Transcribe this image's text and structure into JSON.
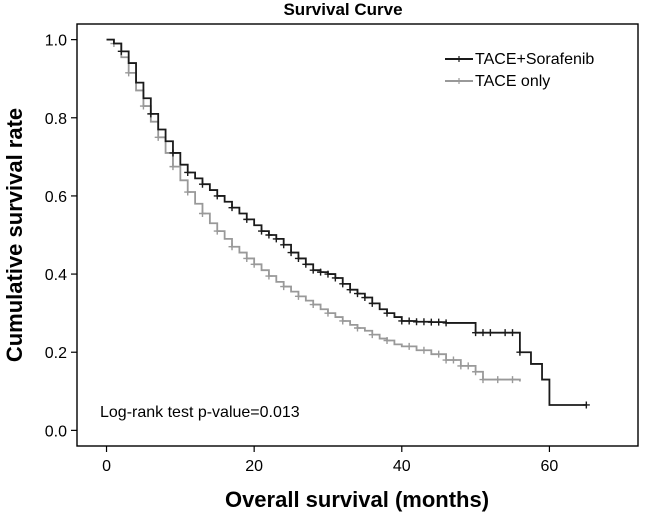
{
  "chart_data": {
    "type": "line",
    "title": "Survival Curve",
    "xlabel": "Overall survival (months)",
    "ylabel": "Cumulative survival rate",
    "xlim": [
      -4,
      72
    ],
    "ylim": [
      -0.04,
      1.04
    ],
    "x_ticks": [
      0,
      20,
      40,
      60
    ],
    "x_tick_labels": [
      "0",
      "20",
      "40",
      "60"
    ],
    "y_ticks": [
      0.0,
      0.2,
      0.4,
      0.6,
      0.8,
      1.0
    ],
    "y_tick_labels": [
      "0.0",
      "0.2",
      "0.4",
      "0.6",
      "0.8",
      "1.0"
    ],
    "legend_position": "top-right",
    "annotation": "Log-rank test p-value=0.013",
    "series": [
      {
        "name": "TACE+Sorafenib",
        "color": "#1a1a1a",
        "points": [
          [
            0,
            1.0
          ],
          [
            1,
            0.99
          ],
          [
            2,
            0.97
          ],
          [
            3,
            0.94
          ],
          [
            4,
            0.89
          ],
          [
            5,
            0.85
          ],
          [
            6,
            0.81
          ],
          [
            7,
            0.77
          ],
          [
            8,
            0.74
          ],
          [
            9,
            0.71
          ],
          [
            10,
            0.68
          ],
          [
            11,
            0.66
          ],
          [
            12,
            0.645
          ],
          [
            13,
            0.63
          ],
          [
            14,
            0.615
          ],
          [
            15,
            0.6
          ],
          [
            16,
            0.585
          ],
          [
            17,
            0.57
          ],
          [
            18,
            0.555
          ],
          [
            19,
            0.54
          ],
          [
            20,
            0.525
          ],
          [
            21,
            0.51
          ],
          [
            22,
            0.5
          ],
          [
            23,
            0.49
          ],
          [
            24,
            0.475
          ],
          [
            25,
            0.455
          ],
          [
            26,
            0.44
          ],
          [
            27,
            0.425
          ],
          [
            28,
            0.41
          ],
          [
            29,
            0.405
          ],
          [
            30,
            0.4
          ],
          [
            31,
            0.39
          ],
          [
            32,
            0.375
          ],
          [
            33,
            0.36
          ],
          [
            34,
            0.35
          ],
          [
            35,
            0.34
          ],
          [
            36,
            0.325
          ],
          [
            37,
            0.31
          ],
          [
            38,
            0.3
          ],
          [
            39,
            0.29
          ],
          [
            40,
            0.28
          ],
          [
            42,
            0.278
          ],
          [
            44,
            0.277
          ],
          [
            46,
            0.275
          ],
          [
            48,
            0.275
          ],
          [
            50,
            0.25
          ],
          [
            52,
            0.25
          ],
          [
            54,
            0.25
          ],
          [
            56,
            0.2
          ],
          [
            57,
            0.2
          ],
          [
            57.5,
            0.17
          ],
          [
            59,
            0.17
          ],
          [
            59,
            0.13
          ],
          [
            60,
            0.13
          ],
          [
            60,
            0.065
          ],
          [
            65,
            0.065
          ]
        ],
        "censor_x": [
          2,
          6,
          9,
          11,
          13,
          15,
          17,
          19,
          21,
          22,
          23,
          24,
          25,
          26,
          27,
          28,
          29,
          30,
          31,
          32,
          33,
          34,
          35,
          36,
          38,
          40,
          41,
          42,
          43,
          44,
          45,
          46,
          50,
          51,
          52,
          54,
          55,
          56,
          65
        ]
      },
      {
        "name": "TACE only",
        "color": "#999999",
        "points": [
          [
            0,
            1.0
          ],
          [
            1,
            0.99
          ],
          [
            2,
            0.955
          ],
          [
            3,
            0.915
          ],
          [
            4,
            0.87
          ],
          [
            5,
            0.83
          ],
          [
            6,
            0.79
          ],
          [
            7,
            0.75
          ],
          [
            8,
            0.71
          ],
          [
            9,
            0.675
          ],
          [
            10,
            0.64
          ],
          [
            11,
            0.61
          ],
          [
            12,
            0.58
          ],
          [
            13,
            0.555
          ],
          [
            14,
            0.53
          ],
          [
            15,
            0.51
          ],
          [
            16,
            0.49
          ],
          [
            17,
            0.47
          ],
          [
            18,
            0.455
          ],
          [
            19,
            0.44
          ],
          [
            20,
            0.425
          ],
          [
            21,
            0.41
          ],
          [
            22,
            0.395
          ],
          [
            23,
            0.38
          ],
          [
            24,
            0.368
          ],
          [
            25,
            0.355
          ],
          [
            26,
            0.343
          ],
          [
            27,
            0.332
          ],
          [
            28,
            0.322
          ],
          [
            29,
            0.31
          ],
          [
            30,
            0.3
          ],
          [
            31,
            0.29
          ],
          [
            32,
            0.28
          ],
          [
            33,
            0.27
          ],
          [
            34,
            0.262
          ],
          [
            35,
            0.255
          ],
          [
            36,
            0.245
          ],
          [
            37,
            0.235
          ],
          [
            38,
            0.23
          ],
          [
            39,
            0.22
          ],
          [
            40,
            0.215
          ],
          [
            42,
            0.205
          ],
          [
            44,
            0.195
          ],
          [
            46,
            0.18
          ],
          [
            48,
            0.165
          ],
          [
            50,
            0.15
          ],
          [
            51,
            0.13
          ],
          [
            56,
            0.125
          ]
        ],
        "censor_x": [
          1,
          3,
          5,
          7,
          9,
          11,
          13,
          15,
          17,
          19,
          20,
          22,
          24,
          26,
          28,
          30,
          32,
          34,
          36,
          38,
          41,
          43,
          45,
          46,
          47,
          48,
          49,
          50,
          51,
          53,
          55
        ]
      }
    ]
  }
}
